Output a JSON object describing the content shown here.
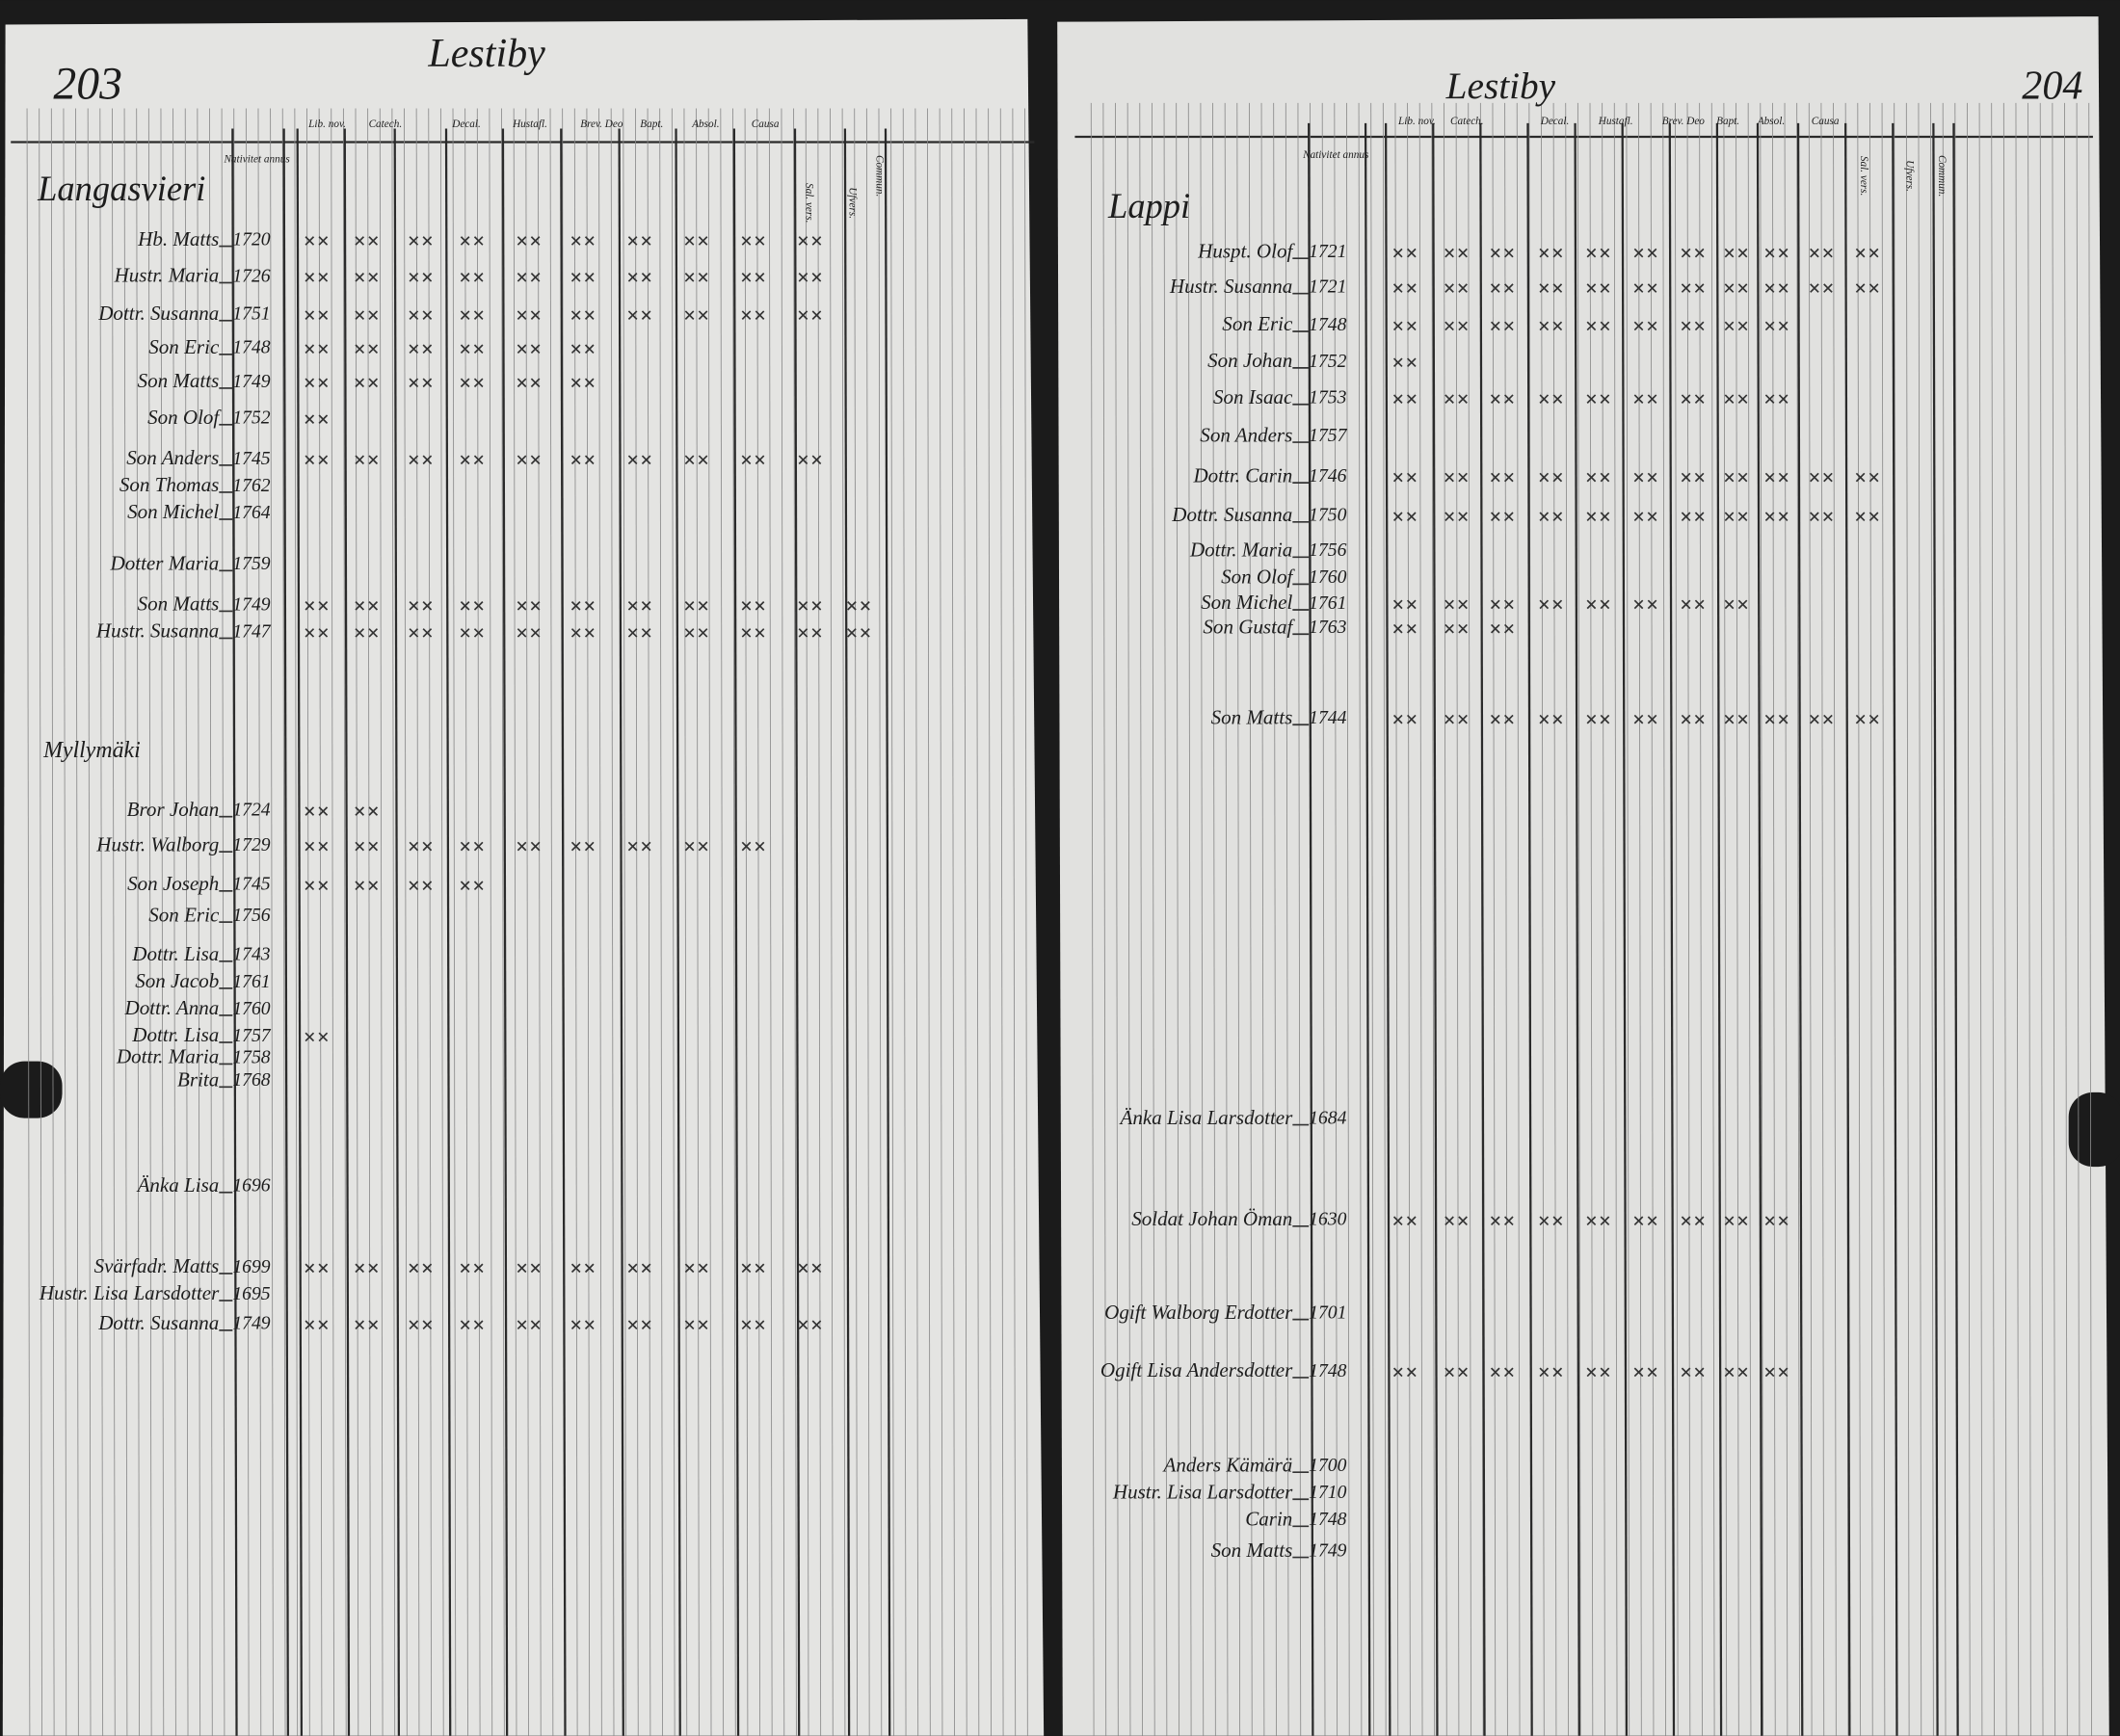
{
  "left_page": {
    "page_number": "203",
    "title": "Lestiby",
    "column_headers": [
      "Nativitet annus",
      "Lib. nov.",
      "Catech.",
      "Decal.",
      "Hustafl.",
      "Brev. Deo",
      "Bapt.",
      "Absol.",
      "Causa",
      "Sal. vers.",
      "Ufvers.",
      "Commun."
    ],
    "households": [
      {
        "name": "Langasvieri",
        "members": [
          {
            "name": "Hb. Matts",
            "year": "1720"
          },
          {
            "name": "Hustr. Maria",
            "year": "1726"
          },
          {
            "name": "Dottr. Susanna",
            "year": "1751"
          },
          {
            "name": "Son Eric",
            "year": "1748"
          },
          {
            "name": "Son Matts",
            "year": "1749"
          },
          {
            "name": "Son Olof",
            "year": "1752"
          },
          {
            "name": "Son Anders",
            "year": "1745"
          },
          {
            "name": "Son Thomas",
            "year": "1762"
          },
          {
            "name": "Son Michel",
            "year": "1764"
          },
          {
            "name": "Dotter Maria",
            "year": "1759"
          },
          {
            "name": "Son Matts",
            "year": "1749"
          },
          {
            "name": "Hustr. Susanna",
            "year": "1747"
          }
        ]
      },
      {
        "name": "Myllymäki",
        "members": [
          {
            "name": "Bror Johan",
            "year": "1724"
          },
          {
            "name": "Hustr. Walborg",
            "year": "1729"
          },
          {
            "name": "Son Joseph",
            "year": "1745"
          },
          {
            "name": "Son Eric",
            "year": "1756"
          },
          {
            "name": "Dottr. Lisa",
            "year": "1743"
          },
          {
            "name": "Son Jacob",
            "year": "1761"
          },
          {
            "name": "Dottr. Anna",
            "year": "1760"
          },
          {
            "name": "Dottr. Lisa",
            "year": "1757"
          },
          {
            "name": "Dottr. Maria",
            "year": "1758"
          },
          {
            "name": "Brita",
            "year": "1768"
          },
          {
            "name": "Änka Lisa",
            "year": "1696"
          },
          {
            "name": "Svärfadr. Matts",
            "year": "1699"
          },
          {
            "name": "Hustr. Lisa Larsdotter",
            "year": "1695"
          },
          {
            "name": "Dottr. Susanna",
            "year": "1749"
          }
        ]
      }
    ]
  },
  "right_page": {
    "page_number": "204",
    "title": "Lestiby",
    "column_headers": [
      "Nativitet annus",
      "Lib. nov.",
      "Catech.",
      "Decal.",
      "Hustafl.",
      "Brev. Deo",
      "Bapt.",
      "Absol.",
      "Causa",
      "Sal. vers.",
      "Ufvers.",
      "Commun."
    ],
    "households": [
      {
        "name": "Lappi",
        "members": [
          {
            "name": "Huspt. Olof",
            "year": "1721"
          },
          {
            "name": "Hustr. Susanna",
            "year": "1721"
          },
          {
            "name": "Son Eric",
            "year": "1748"
          },
          {
            "name": "Son Johan",
            "year": "1752"
          },
          {
            "name": "Son Isaac",
            "year": "1753"
          },
          {
            "name": "Son Anders",
            "year": "1757"
          },
          {
            "name": "Dottr. Carin",
            "year": "1746"
          },
          {
            "name": "Dottr. Susanna",
            "year": "1750"
          },
          {
            "name": "Dottr. Maria",
            "year": "1756"
          },
          {
            "name": "Son Olof",
            "year": "1760"
          },
          {
            "name": "Son Michel",
            "year": "1761"
          },
          {
            "name": "Son Gustaf",
            "year": "1763"
          },
          {
            "name": "Son Matts",
            "year": "1744"
          },
          {
            "name": "Änka Lisa Larsdotter",
            "year": "1684"
          },
          {
            "name": "Soldat Johan Öman",
            "year": "1630"
          },
          {
            "name": "Ogift Walborg Erdotter",
            "year": "1701"
          },
          {
            "name": "Ogift Lisa Andersdotter",
            "year": "1748"
          },
          {
            "name": "Anders Kämärä",
            "year": "1700"
          },
          {
            "name": "Hustr. Lisa Larsdotter",
            "year": "1710"
          },
          {
            "name": "Carin",
            "year": "1748"
          },
          {
            "name": "Son Matts",
            "year": "1749"
          }
        ]
      }
    ]
  }
}
